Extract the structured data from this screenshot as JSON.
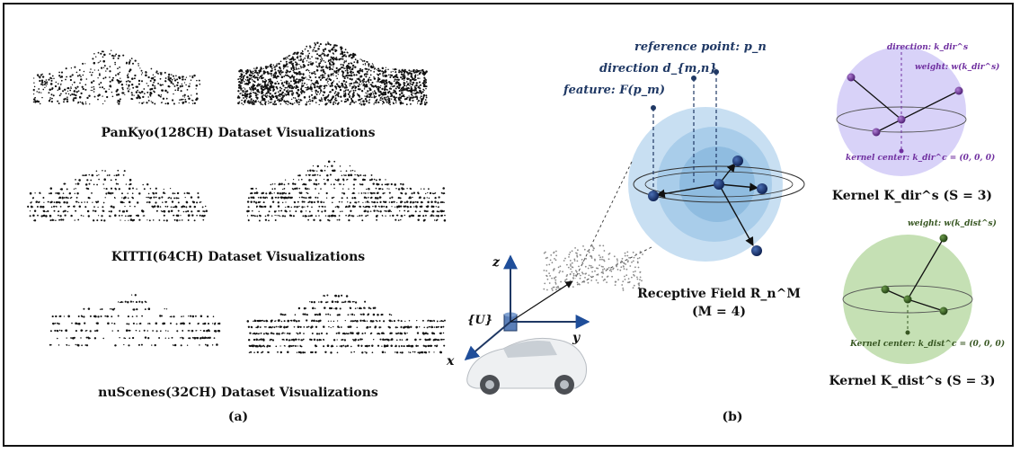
{
  "panel_a": {
    "captions": [
      "PanKyo(128CH) Dataset Visualizations",
      "KITTI(64CH) Dataset Visualizations",
      "nuScenes(32CH) Dataset Visualizations"
    ],
    "label": "(a)"
  },
  "panel_b": {
    "label": "(b)",
    "feature_label": "feature: F(p_m)",
    "direction_label": "direction d_{m,n}",
    "reference_label": "reference point: p_n",
    "axis_z": "z",
    "axis_x": "x",
    "axis_y": "y",
    "frame_label": "{U}",
    "receptive_title": "Receptive Field R_n^M",
    "receptive_param": "(M = 4)"
  },
  "kernel_dir": {
    "direction": "direction: k_dir^s",
    "weight": "weight: w(k_dir^s)",
    "center": "kernel center: k_dir^c = (0, 0, 0)",
    "title": "Kernel K_dir^s (S = 3)"
  },
  "kernel_dist": {
    "weight": "weight: w(k_dist^s)",
    "center": "Kernel center: k_dist^c = (0, 0, 0)",
    "title": "Kernel K_dist^s (S = 3)"
  },
  "colors": {
    "navy": "#1f3864",
    "purple": "#7030a0",
    "green": "#385723",
    "sphere_blue": "#bdd7ee",
    "sphere_purple": "#d9d2f7",
    "sphere_green": "#c5e0b4"
  }
}
